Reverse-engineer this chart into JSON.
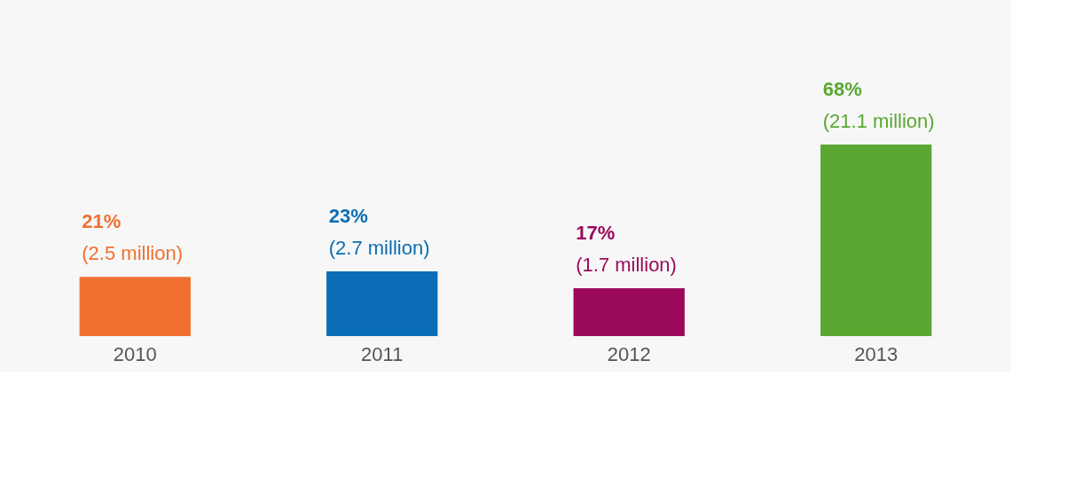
{
  "chart_data": {
    "type": "bar",
    "categories": [
      "2010",
      "2011",
      "2012",
      "2013"
    ],
    "values": [
      21,
      23,
      17,
      68
    ],
    "colors": [
      "#f07030",
      "#0a6db5",
      "#9b0a5a",
      "#5aa832"
    ],
    "value_labels": [
      "21%",
      "23%",
      "17%",
      "68%"
    ],
    "annotations": [
      {
        "text": "(2.5 million)",
        "x": "2010",
        "y": 21
      },
      {
        "text": "(2.7 million)",
        "x": "2011",
        "y": 23
      },
      {
        "text": "(1.7 million)",
        "x": "2012",
        "y": 17
      },
      {
        "text": "(21.1 million)",
        "x": "2013",
        "y": 68
      }
    ],
    "grid": false
  }
}
